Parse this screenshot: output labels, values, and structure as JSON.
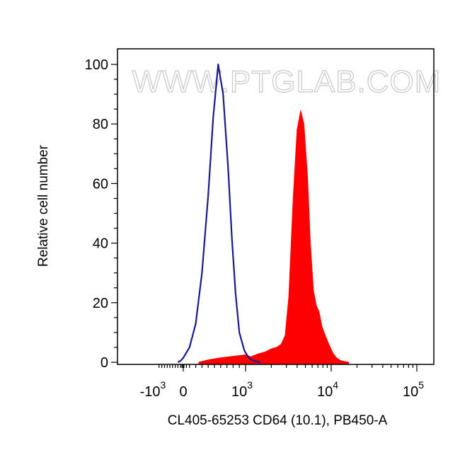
{
  "watermark": "WWW.PTGLAB.COM",
  "chart_data": {
    "type": "area",
    "xlabel": "CL405-65253 CD64 (10.1), PB450-A",
    "ylabel": "Relative cell number",
    "x_scale": "biexponential",
    "ylim": [
      0,
      100
    ],
    "y_ticks": [
      "0",
      "20",
      "40",
      "60",
      "80",
      "100"
    ],
    "x_ticks": [
      {
        "value": -1000,
        "base": "-10",
        "exp": "3"
      },
      {
        "value": 0,
        "base": "0",
        "exp": ""
      },
      {
        "value": 1000,
        "base": "10",
        "exp": "3"
      },
      {
        "value": 10000,
        "base": "10",
        "exp": "4"
      },
      {
        "value": 100000,
        "base": "10",
        "exp": "5"
      }
    ],
    "grid": false,
    "series": [
      {
        "style": "outline",
        "color": "#1a1a8c",
        "x": [
          -200,
          -100,
          0,
          100,
          200,
          300,
          400,
          480,
          560,
          640,
          720,
          780,
          840,
          900,
          980,
          1060,
          1150,
          1300,
          1500
        ],
        "y": [
          0,
          0.5,
          1.5,
          5,
          13,
          30,
          56,
          82,
          100,
          90,
          65,
          42,
          23,
          10,
          4,
          2,
          1,
          0.3,
          0
        ]
      },
      {
        "style": "filled",
        "color": "#ff0000",
        "x": [
          250,
          400,
          600,
          800,
          1000,
          1150,
          1400,
          1700,
          2000,
          2300,
          2600,
          2900,
          3200,
          3600,
          4000,
          4400,
          4800,
          5300,
          5700,
          6200,
          6700,
          7200,
          7800,
          8500,
          9400,
          10500,
          11500,
          13000,
          16000
        ],
        "y": [
          0,
          0.8,
          1.5,
          2,
          2.5,
          1.8,
          2.8,
          3.5,
          4.5,
          5,
          6,
          9,
          22,
          55,
          78,
          84.5,
          80,
          62,
          40,
          24,
          19,
          17,
          12,
          9,
          6,
          3,
          1.5,
          0.5,
          0
        ]
      }
    ]
  }
}
